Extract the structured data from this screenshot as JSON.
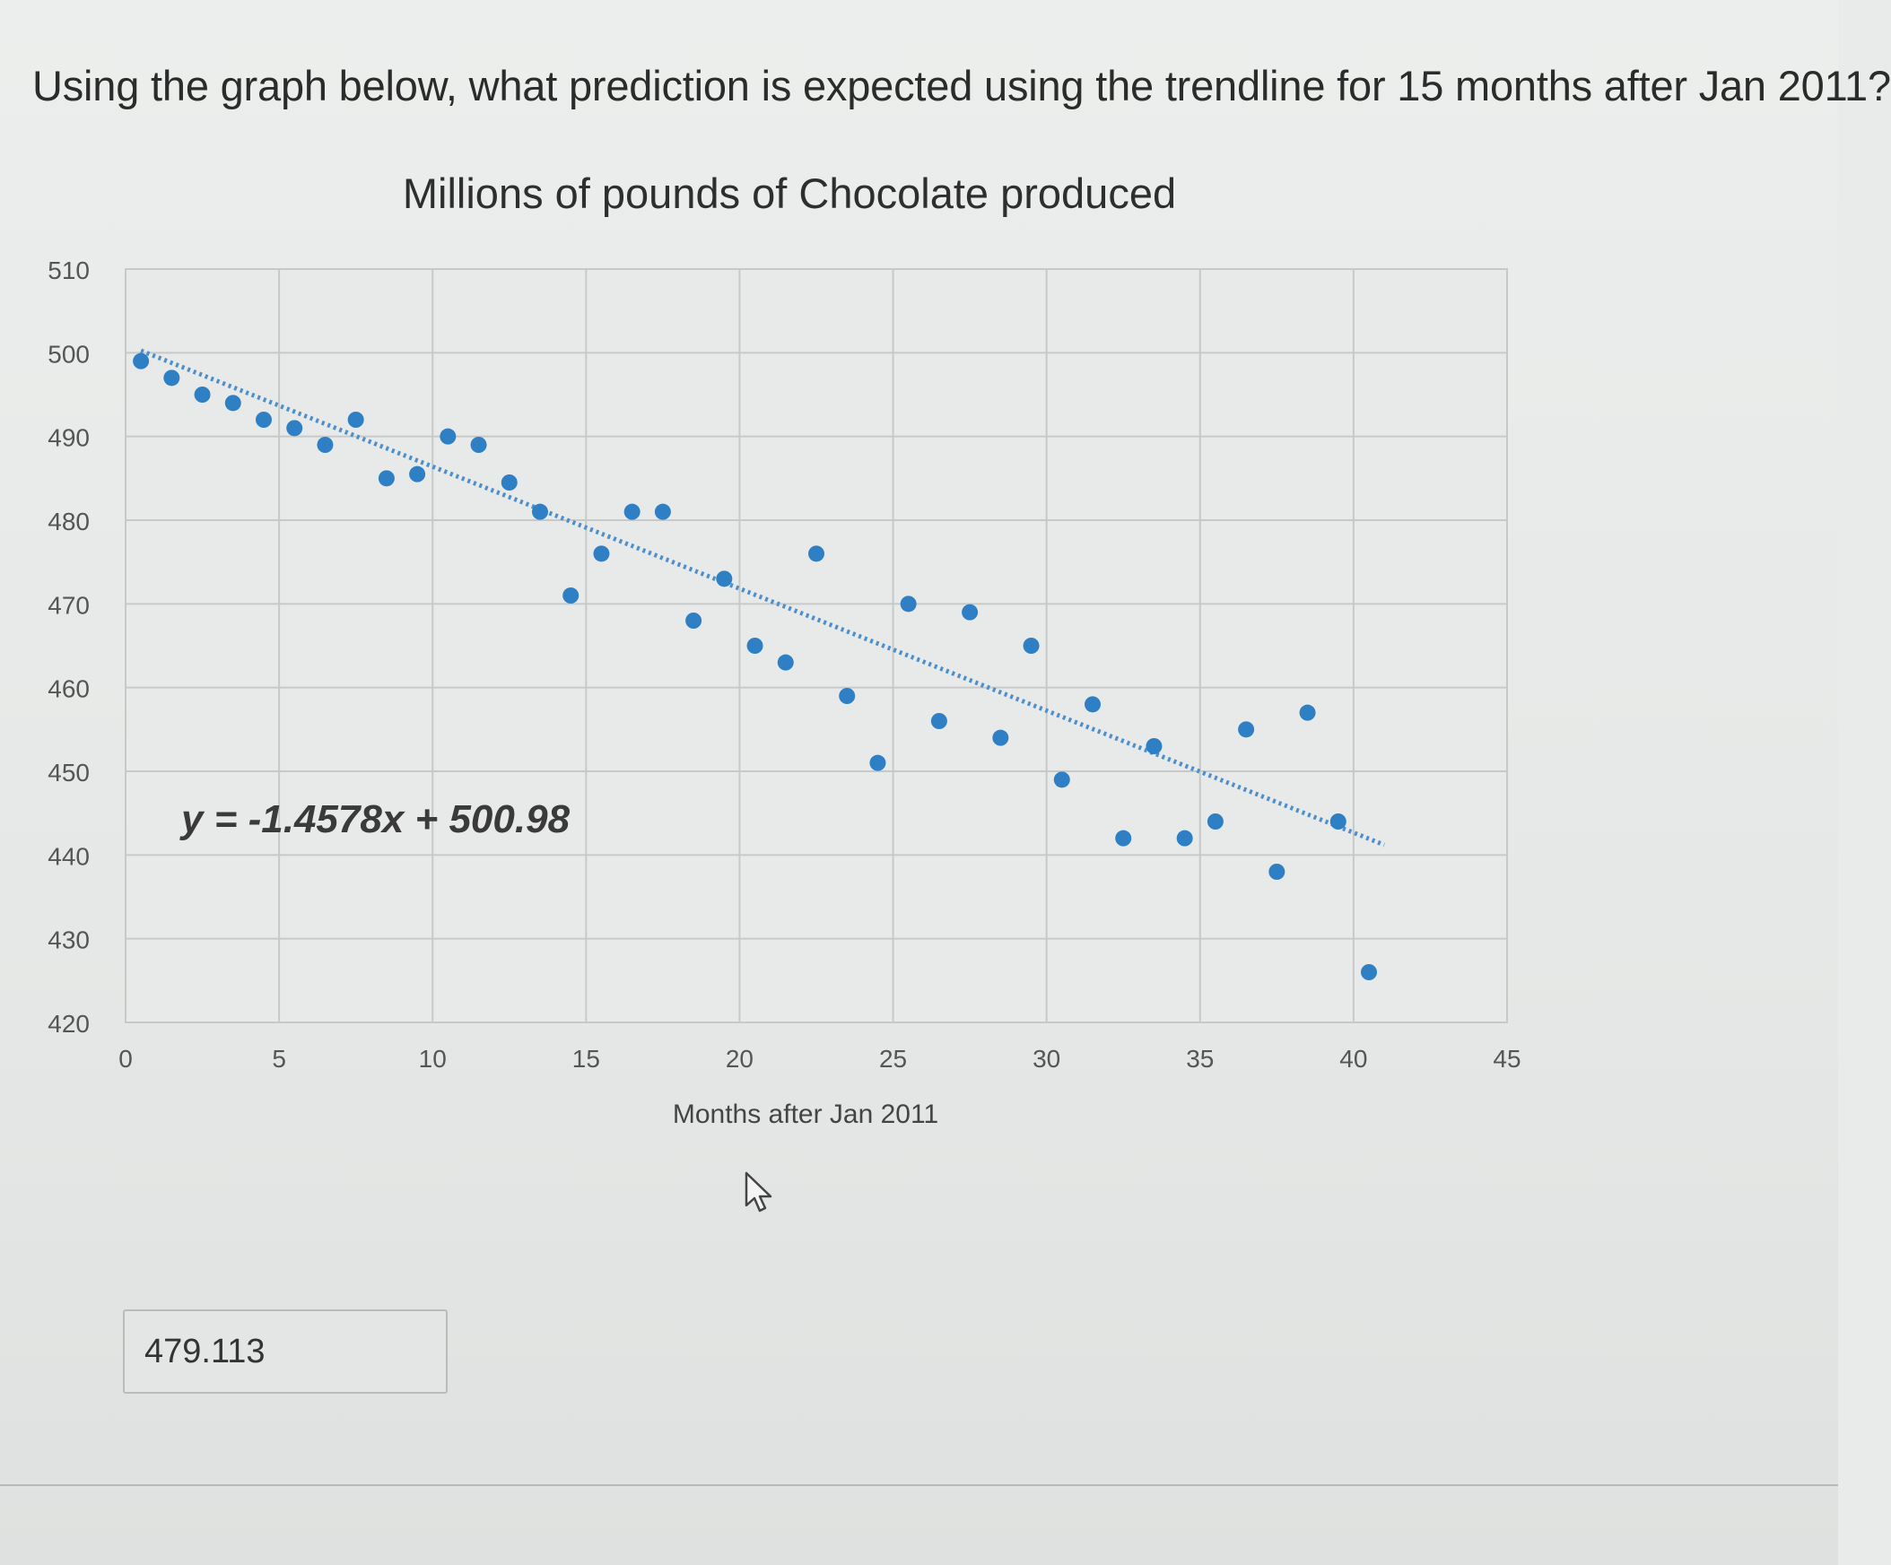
{
  "question": {
    "text": "Using the graph below, what prediction is expected using the trendline for 15 months after Jan 2011?"
  },
  "answer": {
    "value": "479.113"
  },
  "chart_data": {
    "type": "scatter",
    "title": "Millions of pounds of Chocolate produced",
    "xlabel": "Months after Jan 2011",
    "ylabel": "",
    "xlim": [
      0,
      45
    ],
    "ylim": [
      420,
      510
    ],
    "xticks": [
      0,
      5,
      10,
      15,
      20,
      25,
      30,
      35,
      40,
      45
    ],
    "yticks": [
      420,
      430,
      440,
      450,
      460,
      470,
      480,
      490,
      500,
      510
    ],
    "grid": true,
    "trendline": {
      "equation": "y = -1.4578x + 500.98",
      "slope": -1.4578,
      "intercept": 500.98,
      "x_range": [
        0.5,
        41
      ],
      "style": "dotted"
    },
    "series": [
      {
        "color": "#2f7fc4",
        "points": [
          [
            0.5,
            499
          ],
          [
            1.5,
            497
          ],
          [
            2.5,
            495
          ],
          [
            3.5,
            494
          ],
          [
            4.5,
            492
          ],
          [
            5.5,
            491
          ],
          [
            6.5,
            489
          ],
          [
            7.5,
            492
          ],
          [
            8.5,
            485
          ],
          [
            9.5,
            485.5
          ],
          [
            10.5,
            490
          ],
          [
            11.5,
            489
          ],
          [
            12.5,
            484.5
          ],
          [
            13.5,
            481
          ],
          [
            14.5,
            471
          ],
          [
            15.5,
            476
          ],
          [
            16.5,
            481
          ],
          [
            17.5,
            481
          ],
          [
            18.5,
            468
          ],
          [
            19.5,
            473
          ],
          [
            20.5,
            465
          ],
          [
            21.5,
            463
          ],
          [
            22.5,
            476
          ],
          [
            23.5,
            459
          ],
          [
            24.5,
            451
          ],
          [
            25.5,
            470
          ],
          [
            26.5,
            456
          ],
          [
            27.5,
            469
          ],
          [
            28.5,
            454
          ],
          [
            29.5,
            465
          ],
          [
            30.5,
            449
          ],
          [
            31.5,
            458
          ],
          [
            32.5,
            442
          ],
          [
            33.5,
            453
          ],
          [
            34.5,
            442
          ],
          [
            35.5,
            444
          ],
          [
            36.5,
            455
          ],
          [
            37.5,
            438
          ],
          [
            38.5,
            457
          ],
          [
            39.5,
            444
          ],
          [
            40.5,
            426
          ]
        ]
      }
    ]
  }
}
